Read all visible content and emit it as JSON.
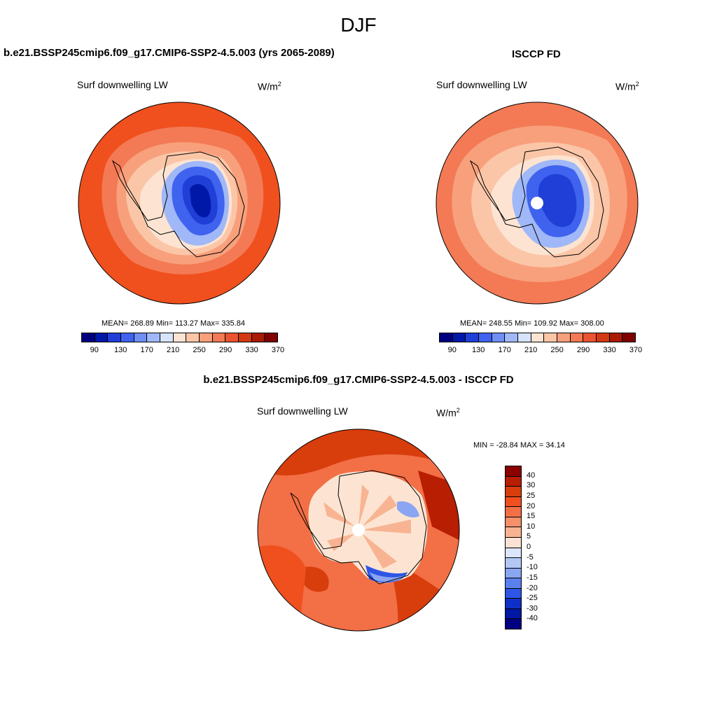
{
  "figure": {
    "season": "DJF",
    "bottom_title": "b.e21.BSSP245cmip6.f09_g17.CMIP6-SSP2-4.5.003 - ISCCP FD"
  },
  "panels": [
    {
      "id": "model",
      "title": "b.e21.BSSP245cmip6.f09_g17.CMIP6-SSP2-4.5.003 (yrs 2065-2089)",
      "variable": "Surf downwelling LW",
      "units_base": "W/m",
      "units_exp": "2",
      "stats": "MEAN= 268.89  Min= 113.27  Max= 335.84",
      "has_pole_hole": false
    },
    {
      "id": "obs",
      "title": "ISCCP FD",
      "variable": "Surf downwelling LW",
      "units_base": "W/m",
      "units_exp": "2",
      "stats": "MEAN= 248.55  Min= 109.92  Max= 308.00",
      "has_pole_hole": true
    },
    {
      "id": "diff",
      "title": "b.e21.BSSP245cmip6.f09_g17.CMIP6-SSP2-4.5.003 - ISCCP FD",
      "variable": "Surf downwelling LW",
      "units_base": "W/m",
      "units_exp": "2",
      "stats": "MIN = -28.84 MAX =  34.14",
      "has_pole_hole": true
    }
  ],
  "colorbar_abs": {
    "colors": [
      "#00007f",
      "#0018a8",
      "#1f3fd6",
      "#3f63ee",
      "#6f8ff4",
      "#a0b8f8",
      "#d6e3fb",
      "#fde4d2",
      "#fbc6a8",
      "#f8a07c",
      "#f37a55",
      "#ea5430",
      "#d33a14",
      "#a91b05",
      "#7f0000"
    ],
    "labels": [
      "90",
      "130",
      "170",
      "210",
      "250",
      "290",
      "330",
      "370"
    ]
  },
  "colorbar_diff": {
    "colors": [
      "#8b0000",
      "#b81e02",
      "#d83d0c",
      "#f0501e",
      "#f36f45",
      "#f5906a",
      "#f8b492",
      "#fbe2d2",
      "#dbe6fb",
      "#b4c8f6",
      "#8aa6f2",
      "#5a80ee",
      "#2d56e6",
      "#0f30c8",
      "#0018a4",
      "#000080"
    ],
    "labels": [
      "40",
      "30",
      "25",
      "20",
      "15",
      "10",
      "5",
      "0",
      "-5",
      "-10",
      "-15",
      "-20",
      "-25",
      "-30",
      "-40"
    ]
  },
  "map_colors": {
    "outer_abs": "#f0501e",
    "mid_abs": "#f8a07c",
    "coast_abs": "#fde4d2",
    "ice_light": "#a0b8f8",
    "ice_mid": "#3f63ee",
    "ice_deep": "#1f3fd6",
    "ice_core": "#0018a8",
    "outer_obs": "#f37a55",
    "mid_obs": "#f8a07c",
    "coast_obs": "#fbc6a8",
    "diff_ocean": "#f0501e",
    "diff_ocean_dark": "#d83d0c",
    "diff_ocean_light": "#f36f45",
    "diff_land": "#fde4d2",
    "diff_land_mid": "#f8b492",
    "diff_neg": "#8aa6f2",
    "diff_neg_deep": "#2d56e6"
  }
}
